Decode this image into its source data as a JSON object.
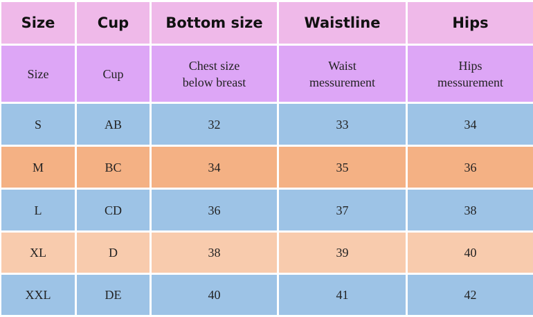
{
  "table": {
    "header": [
      "Size",
      "Cup",
      "Bottom size",
      "Waistline",
      "Hips"
    ],
    "subheader": [
      "Size",
      "Cup",
      "Chest size\nbelow breast",
      "Waist\nmessurement",
      "Hips\nmessurement"
    ],
    "rows": [
      [
        "S",
        "AB",
        32,
        33,
        34
      ],
      [
        "M",
        "BC",
        34,
        35,
        36
      ],
      [
        "L",
        "CD",
        36,
        37,
        38
      ],
      [
        "XL",
        "D",
        38,
        39,
        40
      ],
      [
        "XXL",
        "DE",
        40,
        41,
        42
      ]
    ]
  }
}
